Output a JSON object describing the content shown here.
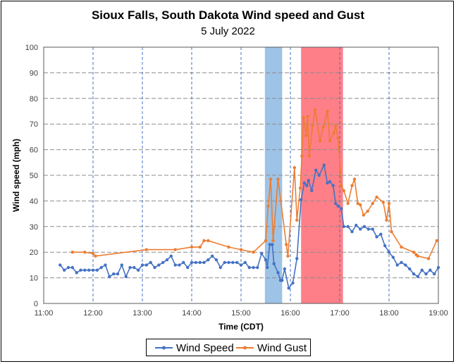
{
  "chart_data": {
    "type": "line",
    "title": "Sioux Falls, South Dakota Wind speed and Gust",
    "subtitle": "5 July 2022",
    "xlabel": "Time (CDT)",
    "ylabel": "Wind speed (mph)",
    "xlim": [
      "11:00",
      "19:00"
    ],
    "ylim": [
      0,
      100
    ],
    "x_ticks": [
      "11:00",
      "12:00",
      "13:00",
      "14:00",
      "15:00",
      "16:00",
      "17:00",
      "18:00",
      "19:00"
    ],
    "y_ticks": [
      0,
      10,
      20,
      30,
      40,
      50,
      60,
      70,
      80,
      90,
      100
    ],
    "grid": true,
    "legend": "bottom",
    "shaded_regions": [
      {
        "start": "15:29",
        "end": "15:50",
        "color": "#9dc3e6"
      },
      {
        "start": "16:13",
        "end": "17:04",
        "color": "#ff7f88"
      }
    ],
    "series": [
      {
        "name": "Wind Speed",
        "color": "#4472c4",
        "points": [
          [
            "11:20",
            15
          ],
          [
            "11:25",
            13
          ],
          [
            "11:30",
            14
          ],
          [
            "11:35",
            14
          ],
          [
            "11:40",
            12
          ],
          [
            "11:45",
            13
          ],
          [
            "11:50",
            13
          ],
          [
            "11:55",
            13
          ],
          [
            "12:00",
            13
          ],
          [
            "12:05",
            13
          ],
          [
            "12:10",
            14
          ],
          [
            "12:15",
            15
          ],
          [
            "12:20",
            10.5
          ],
          [
            "12:25",
            11.5
          ],
          [
            "12:30",
            11.5
          ],
          [
            "12:35",
            15
          ],
          [
            "12:40",
            10.5
          ],
          [
            "12:45",
            14
          ],
          [
            "12:50",
            14
          ],
          [
            "12:55",
            13
          ],
          [
            "13:00",
            15
          ],
          [
            "13:05",
            15
          ],
          [
            "13:10",
            16
          ],
          [
            "13:15",
            14
          ],
          [
            "13:20",
            15
          ],
          [
            "13:25",
            16
          ],
          [
            "13:30",
            17
          ],
          [
            "13:35",
            18.5
          ],
          [
            "13:40",
            15
          ],
          [
            "13:45",
            15
          ],
          [
            "13:50",
            16
          ],
          [
            "13:55",
            14
          ],
          [
            "14:00",
            16
          ],
          [
            "14:05",
            16
          ],
          [
            "14:10",
            16
          ],
          [
            "14:15",
            16
          ],
          [
            "14:20",
            17
          ],
          [
            "14:25",
            18.5
          ],
          [
            "14:30",
            17
          ],
          [
            "14:35",
            14
          ],
          [
            "14:40",
            16
          ],
          [
            "14:45",
            16
          ],
          [
            "14:50",
            16
          ],
          [
            "14:55",
            16
          ],
          [
            "15:00",
            15
          ],
          [
            "15:05",
            16
          ],
          [
            "15:10",
            14
          ],
          [
            "15:15",
            14
          ],
          [
            "15:20",
            14
          ],
          [
            "15:25",
            19.5
          ],
          [
            "15:30",
            17
          ],
          [
            "15:32",
            14
          ],
          [
            "15:35",
            23
          ],
          [
            "15:38",
            23
          ],
          [
            "15:40",
            15.5
          ],
          [
            "15:45",
            12
          ],
          [
            "15:48",
            9
          ],
          [
            "15:50",
            9
          ],
          [
            "15:53",
            13.5
          ],
          [
            "15:58",
            6
          ],
          [
            "16:03",
            8
          ],
          [
            "16:08",
            17.5
          ],
          [
            "16:13",
            40.5
          ],
          [
            "16:17",
            47
          ],
          [
            "16:20",
            46
          ],
          [
            "16:22",
            48
          ],
          [
            "16:26",
            44
          ],
          [
            "16:31",
            52
          ],
          [
            "16:35",
            50
          ],
          [
            "16:41",
            54
          ],
          [
            "16:45",
            47
          ],
          [
            "16:48",
            47.5
          ],
          [
            "16:52",
            46
          ],
          [
            "16:55",
            39
          ],
          [
            "16:58",
            38
          ],
          [
            "17:02",
            37
          ],
          [
            "17:05",
            30
          ],
          [
            "17:10",
            30
          ],
          [
            "17:15",
            28
          ],
          [
            "17:20",
            30.5
          ],
          [
            "17:25",
            29
          ],
          [
            "17:30",
            30
          ],
          [
            "17:35",
            29
          ],
          [
            "17:40",
            29
          ],
          [
            "17:45",
            26
          ],
          [
            "17:50",
            27
          ],
          [
            "17:55",
            22.5
          ],
          [
            "18:00",
            20
          ],
          [
            "18:05",
            18
          ],
          [
            "18:10",
            15
          ],
          [
            "18:15",
            16
          ],
          [
            "18:20",
            15
          ],
          [
            "18:25",
            13.5
          ],
          [
            "18:30",
            11.5
          ],
          [
            "18:35",
            10.5
          ],
          [
            "18:40",
            13
          ],
          [
            "18:45",
            11.5
          ],
          [
            "18:50",
            13
          ],
          [
            "18:55",
            11.5
          ],
          [
            "19:00",
            14
          ]
        ]
      },
      {
        "name": "Wind Gust",
        "color": "#ed7d31",
        "points": [
          [
            "11:35",
            20
          ],
          [
            "11:50",
            20
          ],
          [
            "12:00",
            19.5
          ],
          [
            "12:03",
            18.5
          ],
          [
            "13:05",
            21
          ],
          [
            "13:40",
            21
          ],
          [
            "14:00",
            22
          ],
          [
            "14:10",
            22
          ],
          [
            "14:15",
            24.5
          ],
          [
            "14:20",
            24.5
          ],
          [
            "14:45",
            22
          ],
          [
            "15:00",
            21
          ],
          [
            "15:15",
            20
          ],
          [
            "15:30",
            24.5
          ],
          [
            "15:33",
            38
          ],
          [
            "15:36",
            48.5
          ],
          [
            "15:39",
            24.5
          ],
          [
            "15:45",
            48.5
          ],
          [
            "15:55",
            23
          ],
          [
            "15:57",
            18.5
          ],
          [
            "16:05",
            53
          ],
          [
            "16:08",
            32.5
          ],
          [
            "16:12",
            45
          ],
          [
            "16:14",
            57.5
          ],
          [
            "16:16",
            72.5
          ],
          [
            "16:19",
            65.5
          ],
          [
            "16:21",
            73
          ],
          [
            "16:23",
            57.5
          ],
          [
            "16:27",
            69.5
          ],
          [
            "16:30",
            75.5
          ],
          [
            "16:36",
            63.5
          ],
          [
            "16:40",
            69
          ],
          [
            "16:45",
            75
          ],
          [
            "16:48",
            63.5
          ],
          [
            "16:53",
            66.5
          ],
          [
            "16:55",
            69.5
          ],
          [
            "16:58",
            64.5
          ],
          [
            "17:02",
            46
          ],
          [
            "17:05",
            44
          ],
          [
            "17:10",
            39
          ],
          [
            "17:15",
            46
          ],
          [
            "17:18",
            48.5
          ],
          [
            "17:22",
            39
          ],
          [
            "17:25",
            38.5
          ],
          [
            "17:29",
            34.5
          ],
          [
            "17:34",
            36
          ],
          [
            "17:40",
            39
          ],
          [
            "17:45",
            41.5
          ],
          [
            "17:53",
            39.5
          ],
          [
            "17:57",
            32.5
          ],
          [
            "18:00",
            39
          ],
          [
            "18:03",
            28
          ],
          [
            "18:15",
            22
          ],
          [
            "18:30",
            20
          ],
          [
            "18:33",
            19
          ],
          [
            "18:35",
            18.5
          ],
          [
            "18:48",
            17.5
          ],
          [
            "18:58",
            24.5
          ]
        ]
      }
    ]
  }
}
